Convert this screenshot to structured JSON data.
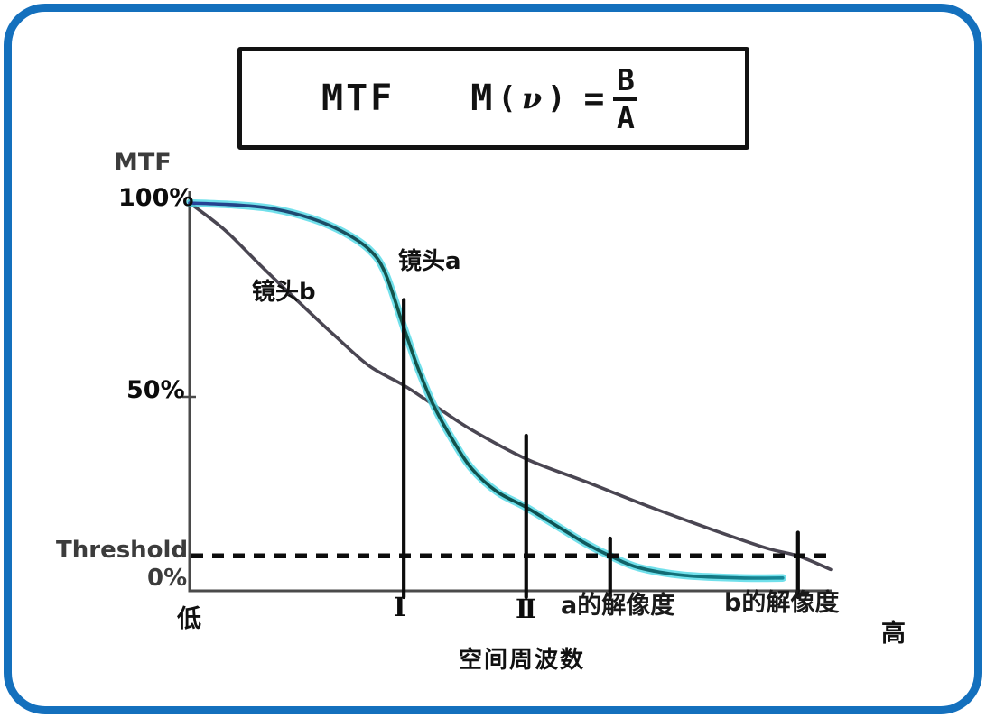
{
  "frame": {
    "border_color": "#1470bd"
  },
  "formula": {
    "title": "MTF",
    "m": "M",
    "open_paren": "(",
    "nu": "ν",
    "close_paren": ")",
    "equals": "=",
    "numerator": "B",
    "denominator": "A"
  },
  "labels": {
    "y_axis_title": "MTF",
    "tick_100": "100%",
    "tick_50": "50%",
    "tick_0": "0%",
    "threshold": "Threshold",
    "x_low": "低",
    "x_high": "高",
    "x_axis_title": "空间周波数",
    "lens_a": "镜头a",
    "lens_b": "镜头b",
    "marker_1": "I",
    "marker_2": "II",
    "resolution_a": "a的解像度",
    "resolution_b": "b的解像度"
  },
  "chart_data": {
    "type": "line",
    "title": "MTF  M(ν) = B/A",
    "xlabel": "空间周波数 (低 → 高)",
    "ylabel": "MTF",
    "ylim": [
      0,
      100
    ],
    "x_range_relative": [
      0,
      100
    ],
    "grid": false,
    "threshold_percent": 9,
    "series": [
      {
        "name": "镜头a",
        "glow_color": "#4ed8e6",
        "core_gradient": [
          "#27409a",
          "#14544a",
          "#0e4f50",
          "#1895a8"
        ],
        "points": [
          [
            0,
            100
          ],
          [
            7,
            99.5
          ],
          [
            13,
            98.5
          ],
          [
            19,
            96
          ],
          [
            24,
            92.5
          ],
          [
            28,
            88
          ],
          [
            30.5,
            82
          ],
          [
            33.4,
            68
          ],
          [
            35.5,
            58
          ],
          [
            38,
            48
          ],
          [
            41,
            39
          ],
          [
            44,
            31.5
          ],
          [
            48,
            25.5
          ],
          [
            52.5,
            21.5
          ],
          [
            58,
            16
          ],
          [
            62,
            12
          ],
          [
            65.6,
            9
          ],
          [
            70,
            6
          ],
          [
            77,
            4
          ],
          [
            86,
            3.3
          ],
          [
            92.5,
            3.3
          ]
        ]
      },
      {
        "name": "镜头b",
        "color": "#4a4652",
        "points": [
          [
            0,
            100
          ],
          [
            5.5,
            93
          ],
          [
            11,
            84
          ],
          [
            17,
            74.5
          ],
          [
            22.5,
            66
          ],
          [
            28,
            58
          ],
          [
            33.4,
            53
          ],
          [
            38,
            48
          ],
          [
            44,
            41.5
          ],
          [
            52.5,
            34
          ],
          [
            62,
            28
          ],
          [
            72,
            21.5
          ],
          [
            82,
            15.5
          ],
          [
            90,
            11
          ],
          [
            94.9,
            9
          ],
          [
            100,
            5.5
          ]
        ]
      }
    ],
    "markers": [
      {
        "label": "I",
        "x": 33.4,
        "top_percent": 75
      },
      {
        "label": "II",
        "x": 52.5,
        "top_percent": 40
      },
      {
        "label": "a的解像度",
        "x": 65.6,
        "top_percent": 13.5
      },
      {
        "label": "b的解像度",
        "x": 94.9,
        "top_percent": 15
      }
    ],
    "annotations": [
      {
        "text": "Threshold",
        "attached_to": "threshold_line"
      },
      {
        "text": "镜头a",
        "attached_to": "series 镜头a"
      },
      {
        "text": "镜头b",
        "attached_to": "series 镜头b"
      }
    ],
    "axis_color": "#4a4a4a",
    "threshold_line_color": "#0c0c0c"
  }
}
